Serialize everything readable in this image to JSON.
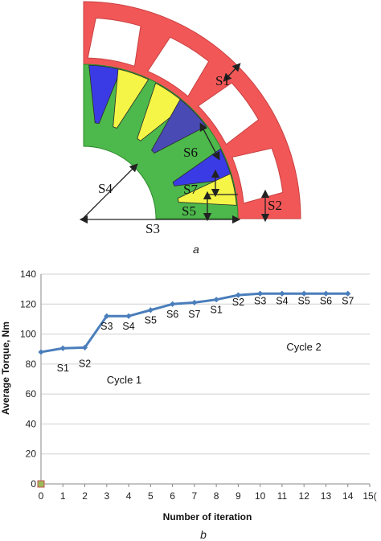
{
  "figure_a": {
    "caption": "a",
    "labels": [
      "S1",
      "S2",
      "S3",
      "S4",
      "S5",
      "S6",
      "S7"
    ],
    "colors": {
      "stator": "#f25757",
      "rotor_core": "#4db84b",
      "magnet_blue": "#3b3be6",
      "magnet_yellow": "#f5f547",
      "magnet_slate": "#4a4ab5",
      "dimension_line": "#222222"
    }
  },
  "chart_data": {
    "type": "line",
    "caption": "b",
    "xlabel": "Number of iteration",
    "ylabel": "Average Torque, Nm",
    "xlim": [
      0,
      15
    ],
    "ylim": [
      0,
      140
    ],
    "xticks": [
      0,
      1,
      2,
      3,
      4,
      5,
      6,
      7,
      8,
      9,
      10,
      11,
      12,
      13,
      14,
      15
    ],
    "xtick_labels": [
      "0",
      "1",
      "2",
      "3",
      "4",
      "5",
      "6",
      "7",
      "8",
      "9",
      "10",
      "11",
      "12",
      "13",
      "14",
      "15("
    ],
    "yticks": [
      0,
      20,
      40,
      60,
      80,
      100,
      120,
      140
    ],
    "grid": "horizontal",
    "legend": "none",
    "series": [
      {
        "color": "#4a7ebb",
        "x": [
          0,
          1,
          2,
          3,
          4,
          5,
          6,
          7,
          8,
          9,
          10,
          11,
          12,
          13,
          14
        ],
        "y": [
          88,
          90.5,
          91,
          112,
          112,
          116,
          120,
          121,
          123,
          126,
          127,
          127,
          127,
          127,
          127
        ]
      }
    ],
    "point_labels": [
      {
        "text": "S1",
        "x": 1,
        "y": 75
      },
      {
        "text": "S2",
        "x": 2,
        "y": 78
      },
      {
        "text": "S3",
        "x": 3,
        "y": 103
      },
      {
        "text": "S4",
        "x": 4,
        "y": 103
      },
      {
        "text": "S5",
        "x": 5,
        "y": 107
      },
      {
        "text": "S6",
        "x": 6,
        "y": 111
      },
      {
        "text": "S7",
        "x": 7,
        "y": 111
      },
      {
        "text": "S1",
        "x": 8,
        "y": 114
      },
      {
        "text": "S2",
        "x": 9,
        "y": 119
      },
      {
        "text": "S3",
        "x": 10,
        "y": 120
      },
      {
        "text": "S4",
        "x": 11,
        "y": 120
      },
      {
        "text": "S5",
        "x": 12,
        "y": 120
      },
      {
        "text": "S6",
        "x": 13,
        "y": 120
      },
      {
        "text": "S7",
        "x": 14,
        "y": 120
      }
    ],
    "annotations": [
      {
        "text": "Cycle 1",
        "x": 3,
        "y": 67
      },
      {
        "text": "Cycle 2",
        "x": 11.2,
        "y": 89
      }
    ]
  }
}
